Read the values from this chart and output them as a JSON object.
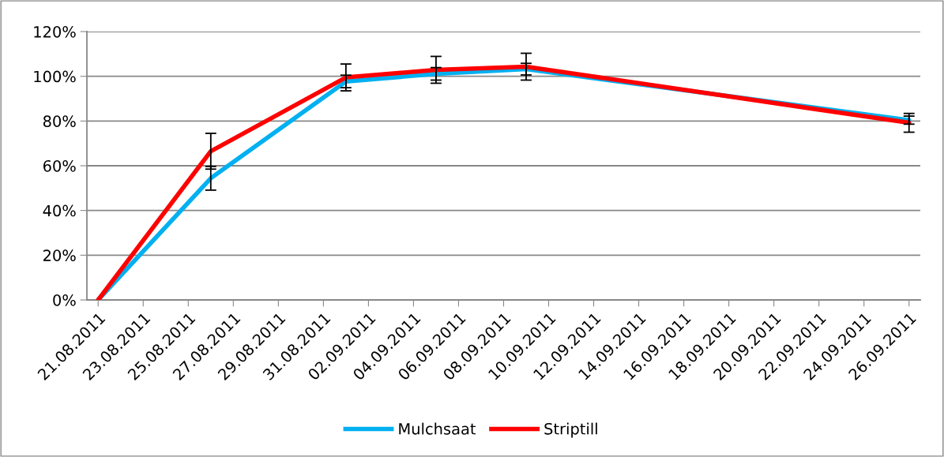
{
  "chart_data": {
    "type": "line",
    "x": [
      "2011-08-21",
      "2011-08-26",
      "2011-09-01",
      "2011-09-05",
      "2011-09-09",
      "2011-09-26"
    ],
    "series": [
      {
        "name": "Mulchsaat",
        "color": "#00b0f0",
        "values": [
          0,
          54.4,
          97.7,
          101.1,
          103.2,
          80.4
        ],
        "errors": [
          null,
          5.3,
          2.8,
          2.8,
          2.6,
          1.8
        ]
      },
      {
        "name": "Striptill",
        "color": "#ff0000",
        "values": [
          0,
          66.5,
          99.5,
          102.9,
          104.3,
          79.2
        ],
        "errors": [
          null,
          8,
          6,
          6,
          6,
          4.2
        ]
      }
    ],
    "ylim": [
      0,
      120
    ],
    "yticks": [
      {
        "value": 0,
        "label": "0%"
      },
      {
        "value": 20,
        "label": "20%"
      },
      {
        "value": 40,
        "label": "40%"
      },
      {
        "value": 60,
        "label": "60%"
      },
      {
        "value": 80,
        "label": "80%"
      },
      {
        "value": 100,
        "label": "100%"
      },
      {
        "value": 120,
        "label": "120%"
      }
    ],
    "xlim": [
      "2011-08-20T12:00",
      "2011-09-26T12:00"
    ],
    "xticks": [
      {
        "value": "2011-08-21",
        "label": "21.08.2011"
      },
      {
        "value": "2011-08-23",
        "label": "23.08.2011"
      },
      {
        "value": "2011-08-25",
        "label": "25.08.2011"
      },
      {
        "value": "2011-08-27",
        "label": "27.08.2011"
      },
      {
        "value": "2011-08-29",
        "label": "29.08.2011"
      },
      {
        "value": "2011-08-31",
        "label": "31.08.2011"
      },
      {
        "value": "2011-09-02",
        "label": "02.09.2011"
      },
      {
        "value": "2011-09-04",
        "label": "04.09.2011"
      },
      {
        "value": "2011-09-06",
        "label": "06.09.2011"
      },
      {
        "value": "2011-09-08",
        "label": "08.09.2011"
      },
      {
        "value": "2011-09-10",
        "label": "10.09.2011"
      },
      {
        "value": "2011-09-12",
        "label": "12.09.2011"
      },
      {
        "value": "2011-09-14",
        "label": "14.09.2011"
      },
      {
        "value": "2011-09-16",
        "label": "16.09.2011"
      },
      {
        "value": "2011-09-18",
        "label": "18.09.2011"
      },
      {
        "value": "2011-09-20",
        "label": "20.09.2011"
      },
      {
        "value": "2011-09-22",
        "label": "22.09.2011"
      },
      {
        "value": "2011-09-24",
        "label": "24.09.2011"
      },
      {
        "value": "2011-09-26",
        "label": "26.09.2011"
      }
    ],
    "grid": "y",
    "legend": "bottom",
    "marker": "none",
    "line_style": "solid"
  }
}
